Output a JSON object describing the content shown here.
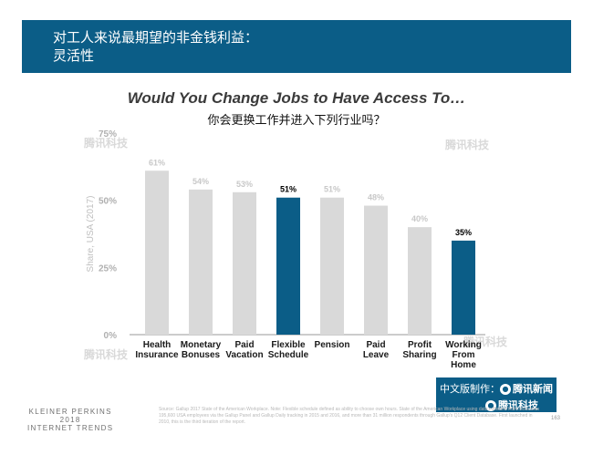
{
  "header": {
    "title": "对工人来说最期望的非金钱利益：\n灵活性"
  },
  "chart_data": {
    "type": "bar",
    "title": "Would You Change Jobs to Have Access To…",
    "subtitle": "你会更换工作并进入下列行业吗？",
    "ylabel": "Share, USA (2017)",
    "xlabel": "",
    "ylim": [
      0,
      75
    ],
    "yticks": [
      "0%",
      "25%",
      "50%",
      "75%"
    ],
    "ytick_values": [
      0,
      25,
      50,
      75
    ],
    "grid": false,
    "legend": "none",
    "categories": [
      "Health\nInsurance",
      "Monetary\nBonuses",
      "Paid\nVacation",
      "Flexible\nSchedule",
      "Pension",
      "Paid\nLeave",
      "Profit\nSharing",
      "Working\nFrom\nHome"
    ],
    "values": [
      61,
      54,
      53,
      51,
      51,
      48,
      40,
      35
    ],
    "data_labels": [
      "61%",
      "54%",
      "53%",
      "51%",
      "51%",
      "48%",
      "40%",
      "35%"
    ],
    "highlighted": [
      false,
      false,
      false,
      true,
      false,
      false,
      false,
      true
    ],
    "colors": {
      "default": "#d9d9d9",
      "highlight": "#0b5d87",
      "muted_label": "#c8c8c8",
      "strong_label": "#000000"
    }
  },
  "watermarks": [
    "腾讯科技",
    "腾讯科技",
    "腾讯科技",
    "腾讯科技"
  ],
  "credit": {
    "line1_prefix": "中文版制作：",
    "line1_brand": "腾讯新闻",
    "line2_brand": "腾讯科技"
  },
  "footer": {
    "publisher": "KLEINER PERKINS\n2018\nINTERNET TRENDS",
    "source": "Source: Gallup 2017 State of the American Workplace. Note: Flexible schedule defined as ability to choose own hours. State of the American Workplace using data collected from more than 195,600 USA employees via the Gallup Panel and Gallup Daily tracking in 2015 and 2016, and more than 31 million respondents through Gallup's Q12 Client Database. First launched in 2010, this is the third iteration of the report.",
    "page_number": "163"
  }
}
